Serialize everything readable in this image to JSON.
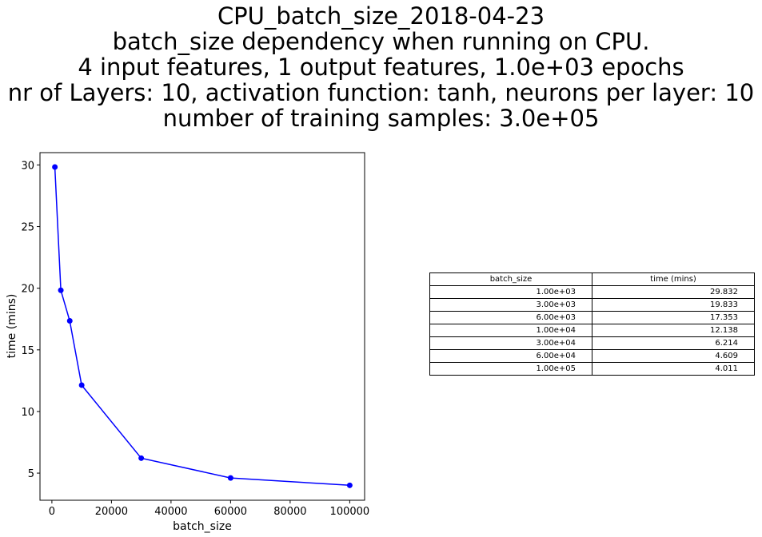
{
  "title_lines": [
    "CPU_batch_size_2018-04-23",
    "batch_size dependency when running on CPU.",
    "4 input features, 1 output features, 1.0e+03 epochs",
    "nr of Layers: 10, activation function: tanh, neurons per layer: 10",
    "number of training samples: 3.0e+05"
  ],
  "chart_data": {
    "type": "line",
    "title": "CPU_batch_size_2018-04-23",
    "xlabel": "batch_size",
    "ylabel": "time (mins)",
    "x": [
      1000,
      3000,
      6000,
      10000,
      30000,
      60000,
      100000
    ],
    "series": [
      {
        "values": [
          29.832,
          19.833,
          17.353,
          12.138,
          6.214,
          4.609,
          4.011
        ],
        "color": "#0000ff",
        "marker": "circle"
      }
    ],
    "xticks": [
      0,
      20000,
      40000,
      60000,
      80000,
      100000
    ],
    "yticks": [
      5,
      10,
      15,
      20,
      25,
      30
    ],
    "xlim": [
      -4000,
      105000
    ],
    "ylim": [
      2.8,
      31.0
    ],
    "grid": false
  },
  "table": {
    "headers": [
      "batch_size",
      "time (mins)"
    ],
    "rows": [
      [
        "1.00e+03",
        "29.832"
      ],
      [
        "3.00e+03",
        "19.833"
      ],
      [
        "6.00e+03",
        "17.353"
      ],
      [
        "1.00e+04",
        "12.138"
      ],
      [
        "3.00e+04",
        "6.214"
      ],
      [
        "6.00e+04",
        "4.609"
      ],
      [
        "1.00e+05",
        "4.011"
      ]
    ]
  }
}
